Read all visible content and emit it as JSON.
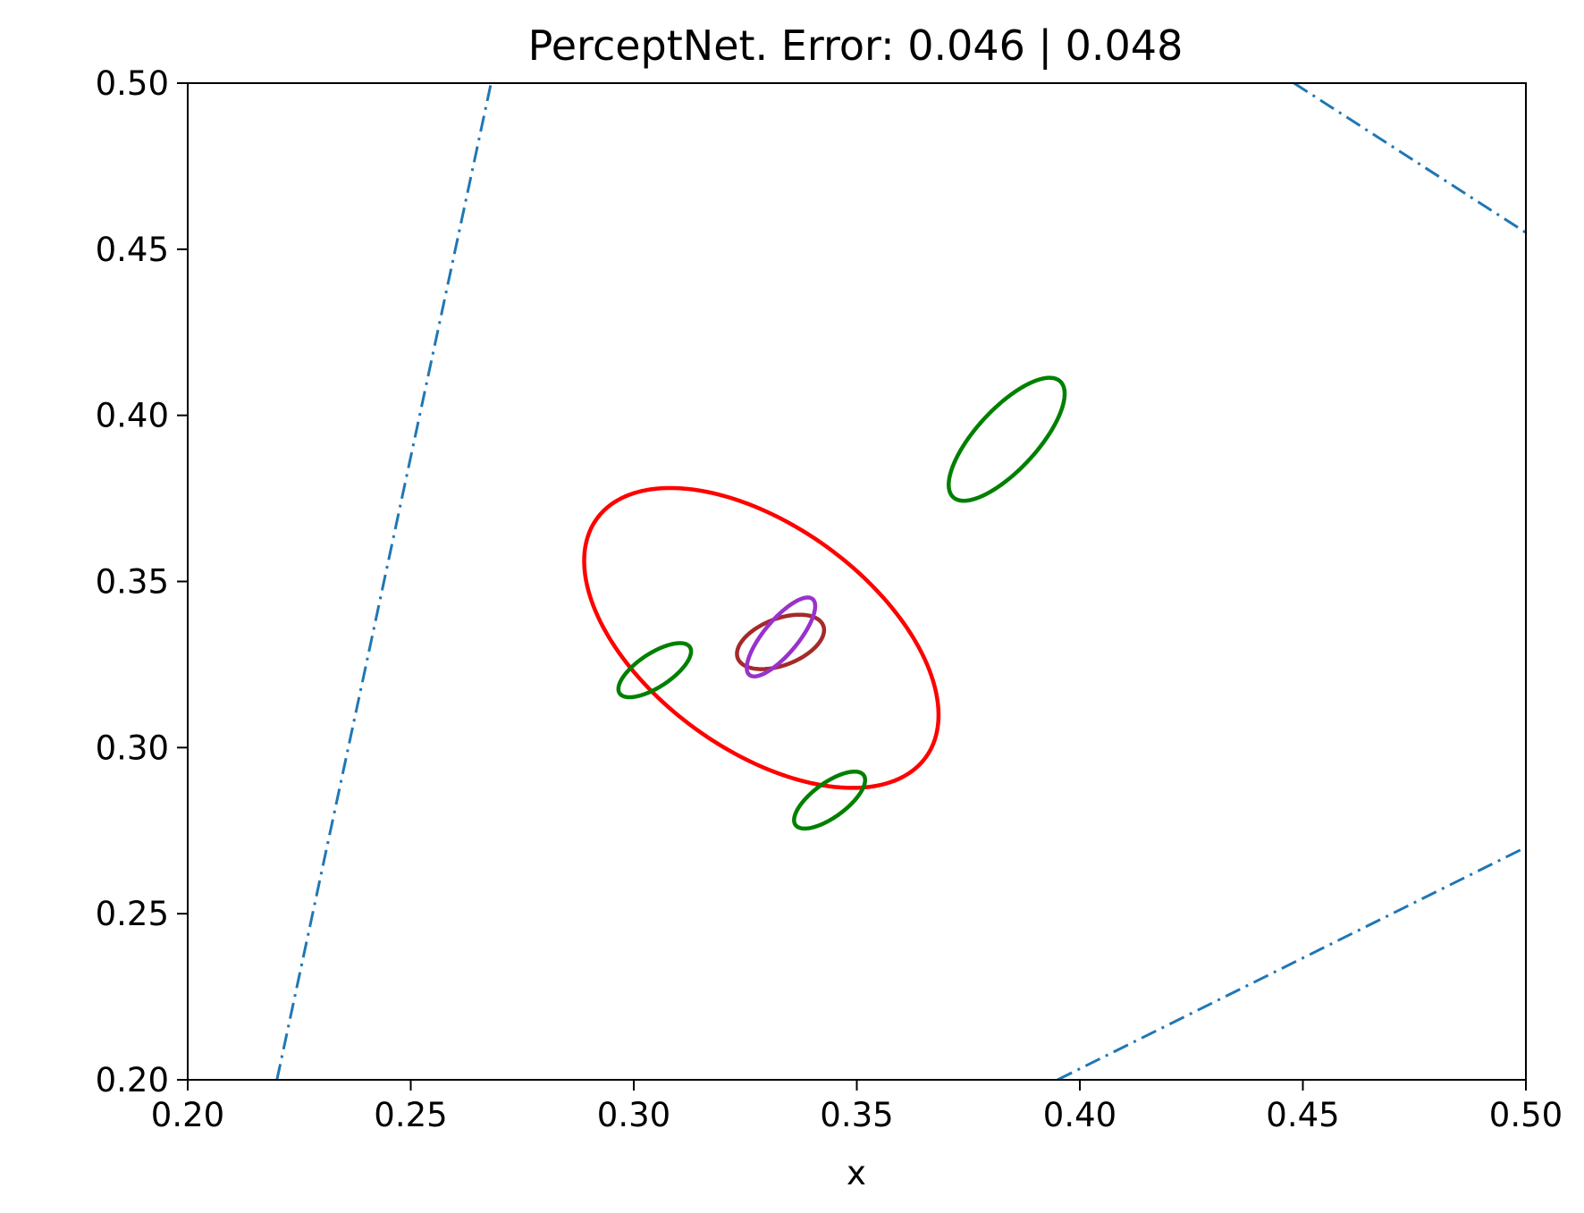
{
  "chart_data": {
    "type": "line",
    "title": "PerceptNet. Error: 0.046 | 0.048",
    "xlabel": "x",
    "ylabel": "",
    "xlim": [
      0.2,
      0.5
    ],
    "ylim": [
      0.2,
      0.5
    ],
    "xticks": [
      "0.20",
      "0.25",
      "0.30",
      "0.35",
      "0.40",
      "0.45",
      "0.50"
    ],
    "yticks": [
      "0.20",
      "0.25",
      "0.30",
      "0.35",
      "0.40",
      "0.45",
      "0.50"
    ],
    "grid": false,
    "legend": "none",
    "series": [
      {
        "kind": "boundary-line",
        "color": "#1f77b4",
        "style": "dash-dot",
        "points": [
          [
            0.22,
            0.2
          ],
          [
            0.268,
            0.5
          ]
        ]
      },
      {
        "kind": "boundary-line",
        "color": "#1f77b4",
        "style": "dash-dot",
        "points": [
          [
            0.448,
            0.5
          ],
          [
            0.5,
            0.455
          ]
        ]
      },
      {
        "kind": "boundary-line",
        "color": "#1f77b4",
        "style": "dash-dot",
        "points": [
          [
            0.395,
            0.2
          ],
          [
            0.5,
            0.27
          ]
        ]
      },
      {
        "kind": "ellipse",
        "color": "#ff0000",
        "center": [
          0.3286,
          0.333
        ],
        "semi_axes": [
          0.0525,
          0.0293
        ],
        "angle_deg": -52.0
      },
      {
        "kind": "ellipse",
        "color": "#008000",
        "center": [
          0.3836,
          0.3928
        ],
        "semi_axes": [
          0.0213,
          0.0076
        ],
        "angle_deg": 58.0
      },
      {
        "kind": "ellipse",
        "color": "#008000",
        "center": [
          0.3047,
          0.3233
        ],
        "semi_axes": [
          0.0106,
          0.0045
        ],
        "angle_deg": 45.0
      },
      {
        "kind": "ellipse",
        "color": "#008000",
        "center": [
          0.3439,
          0.2842
        ],
        "semi_axes": [
          0.0108,
          0.0045
        ],
        "angle_deg": 48.0
      },
      {
        "kind": "ellipse",
        "color": "#a52a2a",
        "center": [
          0.3329,
          0.3318
        ],
        "semi_axes": [
          0.0109,
          0.0066
        ],
        "angle_deg": 34.0
      },
      {
        "kind": "ellipse",
        "color": "#9932cc",
        "center": [
          0.333,
          0.3333
        ],
        "semi_axes": [
          0.0135,
          0.0042
        ],
        "angle_deg": 60.0
      }
    ]
  }
}
